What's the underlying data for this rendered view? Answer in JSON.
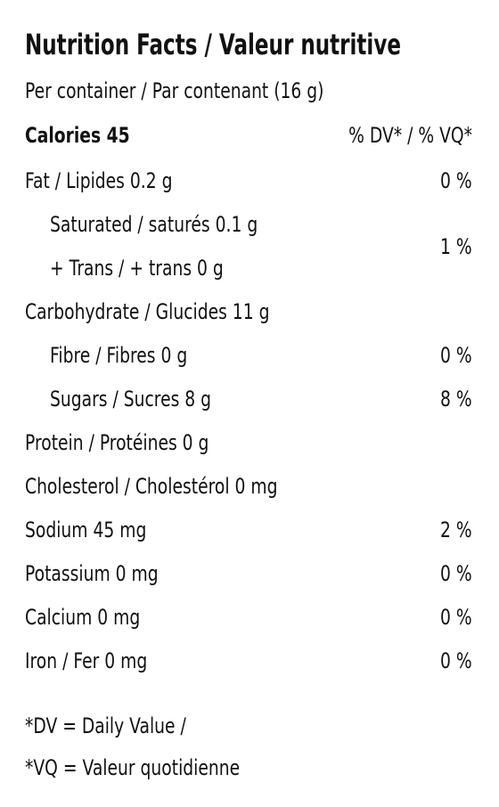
{
  "title": "Nutrition Facts / Valeur nutritive",
  "serving": "Per container / Par contenant (16 g)",
  "calories": "Calories 45",
  "dv_header": "% DV* / % VQ*",
  "nutrients": [
    {
      "label": "Fat / Lipides 0.2 g",
      "dv": "0 %",
      "sub": [
        {
          "labels": [
            "Saturated / saturés 0.1 g",
            "+ Trans / + trans 0 g"
          ],
          "dv": "1 %"
        }
      ]
    },
    {
      "label": "Carbohydrate / Glucides 11 g",
      "sub": [
        {
          "labels": [
            "Fibre / Fibres 0 g"
          ],
          "dv": "0 %"
        },
        {
          "labels": [
            "Sugars / Sucres 8 g"
          ],
          "dv": "8 %"
        }
      ]
    },
    {
      "label": "Protein / Protéines 0 g"
    },
    {
      "label": "Cholesterol / Cholestérol 0 mg"
    },
    {
      "label": "Sodium 45 mg",
      "dv": "2 %"
    },
    {
      "label": "Potassium 0 mg",
      "dv": "0 %"
    },
    {
      "label": "Calcium 0 mg",
      "dv": "0 %"
    },
    {
      "label": "Iron / Fer 0 mg",
      "dv": "0 %"
    }
  ],
  "footnotes": [
    "*DV = Daily Value /",
    "*VQ = Valeur quotidienne"
  ]
}
